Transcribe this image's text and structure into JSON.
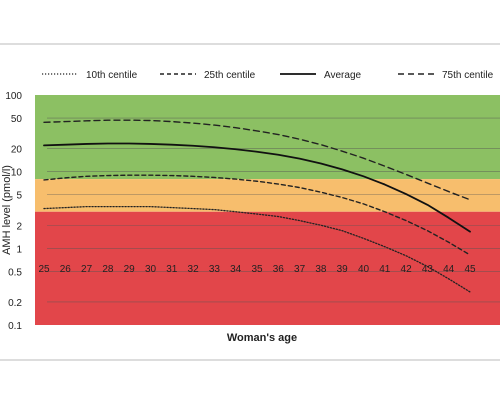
{
  "chart_data": {
    "type": "line",
    "title": "",
    "xlabel": "Woman's age",
    "ylabel": "AMH level (pmol/l)",
    "y_scale": "log",
    "ylim": [
      0.1,
      100
    ],
    "x": [
      25,
      26,
      27,
      28,
      29,
      30,
      31,
      32,
      33,
      34,
      35,
      36,
      37,
      38,
      39,
      40,
      41,
      42,
      43,
      44,
      45
    ],
    "x_tick_labels": [
      "25",
      "26",
      "27",
      "28",
      "29",
      "30",
      "31",
      "32",
      "33",
      "34",
      "35",
      "36",
      "37",
      "38",
      "39",
      "40",
      "41",
      "42",
      "43",
      "44",
      "45"
    ],
    "y_ticks": [
      0.1,
      0.2,
      0.5,
      1,
      2,
      5,
      10,
      20,
      50,
      100
    ],
    "y_tick_labels": [
      "0.1",
      "0.2",
      "0.5",
      "1",
      "2",
      "5",
      "10",
      "20",
      "50",
      "100"
    ],
    "grid": true,
    "legend_position": "top",
    "bands": [
      {
        "from": 8,
        "to": 100,
        "color": "#8cc063"
      },
      {
        "from": 3,
        "to": 8,
        "color": "#f7be6d"
      },
      {
        "from": 0.1,
        "to": 3,
        "color": "#e2464a"
      }
    ],
    "series": [
      {
        "name": "10th centile",
        "dash": "dotted",
        "color": "#222222",
        "values": [
          3.3,
          3.4,
          3.5,
          3.5,
          3.5,
          3.5,
          3.4,
          3.3,
          3.2,
          3.0,
          2.8,
          2.6,
          2.3,
          2.0,
          1.7,
          1.35,
          1.05,
          0.8,
          0.58,
          0.4,
          0.27
        ]
      },
      {
        "name": "25th centile",
        "dash": "short",
        "color": "#222222",
        "values": [
          7.8,
          8.3,
          8.7,
          8.9,
          9.0,
          9.0,
          8.9,
          8.7,
          8.4,
          8.0,
          7.5,
          6.9,
          6.2,
          5.4,
          4.6,
          3.8,
          3.0,
          2.3,
          1.7,
          1.2,
          0.82
        ]
      },
      {
        "name": "Average",
        "dash": "solid",
        "color": "#111111",
        "values": [
          22,
          22.5,
          23,
          23.3,
          23.3,
          23,
          22.5,
          21.8,
          20.8,
          19.6,
          18.2,
          16.6,
          14.8,
          12.8,
          10.7,
          8.7,
          6.8,
          5.1,
          3.7,
          2.5,
          1.65
        ]
      },
      {
        "name": "75th centile",
        "dash": "long",
        "color": "#222222",
        "values": [
          44,
          45,
          46,
          47,
          47,
          46.5,
          45,
          43,
          40.5,
          37.5,
          34,
          30.5,
          26.5,
          22.5,
          18.5,
          15,
          11.8,
          9.2,
          7.1,
          5.5,
          4.3
        ]
      }
    ]
  }
}
